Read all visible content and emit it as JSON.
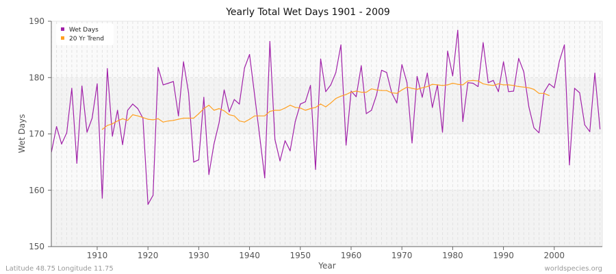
{
  "chart_data": {
    "type": "line",
    "title": "Yearly Total Wet Days 1901 - 2009",
    "xlabel": "Year",
    "ylabel": "Wet Days",
    "xlim": [
      1901,
      2009
    ],
    "ylim": [
      150,
      190
    ],
    "x_ticks": [
      1910,
      1920,
      1930,
      1940,
      1950,
      1960,
      1970,
      1980,
      1990,
      2000
    ],
    "y_ticks": [
      150,
      160,
      170,
      180,
      190
    ],
    "grid": true,
    "legend_position": "top-left",
    "series": [
      {
        "name": "Wet Days",
        "color": "#a020a8",
        "x_start": 1901,
        "values": [
          166.8,
          171.3,
          168.2,
          170.2,
          178.1,
          164.8,
          178.5,
          170.3,
          172.8,
          178.9,
          158.6,
          181.6,
          169.6,
          174.2,
          168.1,
          174.2,
          175.3,
          174.5,
          172.8,
          157.5,
          159.1,
          181.8,
          178.7,
          179.0,
          179.3,
          173.2,
          182.8,
          177.3,
          165.0,
          165.4,
          176.5,
          162.8,
          168.2,
          172.0,
          177.8,
          173.9,
          176.1,
          175.3,
          181.7,
          184.1,
          176.9,
          169.6,
          162.2,
          186.4,
          169.0,
          165.2,
          168.8,
          167.0,
          172.2,
          175.3,
          175.7,
          178.6,
          163.7,
          183.3,
          177.5,
          178.7,
          180.9,
          185.8,
          168.0,
          177.6,
          176.6,
          182.1,
          173.6,
          174.2,
          176.9,
          181.3,
          180.9,
          177.3,
          175.5,
          182.3,
          179.1,
          168.4,
          180.2,
          176.5,
          180.8,
          174.7,
          178.7,
          170.3,
          184.7,
          180.3,
          188.4,
          172.2,
          179.1,
          179.0,
          178.4,
          186.2,
          179.1,
          179.5,
          177.5,
          182.8,
          177.5,
          177.6,
          183.4,
          181.0,
          174.8,
          171.1,
          170.2,
          177.4,
          178.9,
          178.2,
          182.9,
          185.8,
          164.5,
          178.1,
          177.3,
          171.6,
          170.4,
          180.8,
          170.9
        ]
      },
      {
        "name": "20 Yr Trend",
        "color": "#ffa020",
        "x_start": 1911,
        "values": [
          170.8,
          171.5,
          171.8,
          172.3,
          172.7,
          172.4,
          173.4,
          173.2,
          172.9,
          172.6,
          172.5,
          172.7,
          172.1,
          172.3,
          172.4,
          172.6,
          172.8,
          172.8,
          172.8,
          173.6,
          174.5,
          175.1,
          174.2,
          174.5,
          174.1,
          173.4,
          173.2,
          172.3,
          172.1,
          172.6,
          173.2,
          173.2,
          173.2,
          174.0,
          174.2,
          174.2,
          174.6,
          175.1,
          174.7,
          174.6,
          174.2,
          174.5,
          174.7,
          175.3,
          174.8,
          175.5,
          176.3,
          176.7,
          177.0,
          177.4,
          177.6,
          177.4,
          177.4,
          178.0,
          177.8,
          177.7,
          177.7,
          177.3,
          177.2,
          177.8,
          178.3,
          178.1,
          177.9,
          178.2,
          178.4,
          178.8,
          178.7,
          178.6,
          178.7,
          179.0,
          178.8,
          178.7,
          179.4,
          179.5,
          179.4,
          178.9,
          178.7,
          178.6,
          178.9,
          178.7,
          178.7,
          178.6,
          178.4,
          178.3,
          178.2,
          177.9,
          177.2,
          177.2,
          176.8
        ]
      }
    ]
  },
  "footer": {
    "location": "Latitude 48.75 Longitude 11.75",
    "source": "worldspecies.org"
  }
}
